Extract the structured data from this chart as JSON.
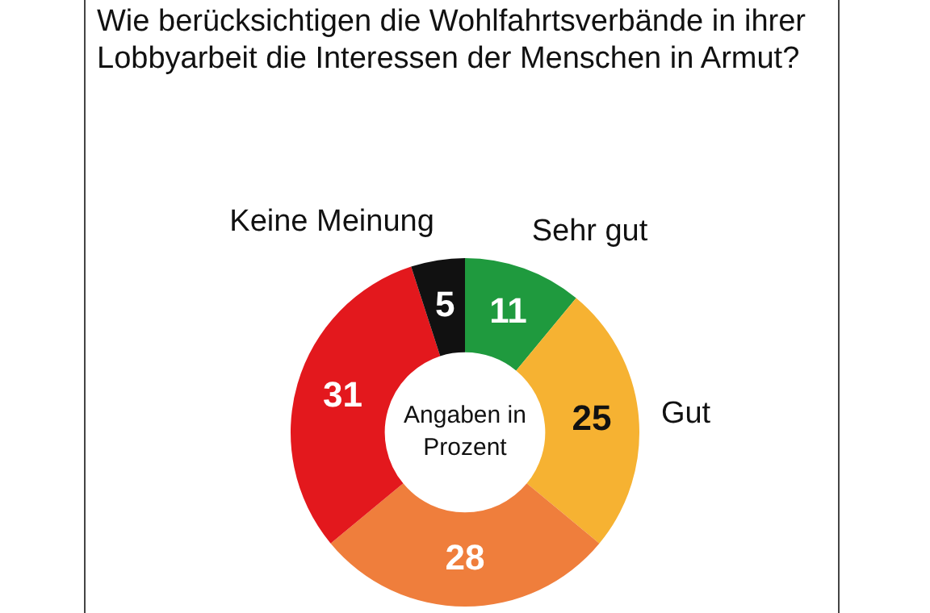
{
  "chart_data": {
    "type": "donut",
    "title": "Wie berücksichtigen die Wohlfahrtsverbände in ihrer Lobbyarbeit die Interessen der Menschen in Armut?",
    "categories": [
      "Sehr gut",
      "Gut",
      null,
      null,
      "Keine Meinung"
    ],
    "values": [
      11,
      25,
      28,
      31,
      5
    ],
    "colors": [
      "#1f9a3e",
      "#f6b232",
      "#ef7e3c",
      "#e3181d",
      "#111111"
    ],
    "data_labels": true,
    "legend": false,
    "annotations": [
      "Angaben in Prozent"
    ]
  }
}
